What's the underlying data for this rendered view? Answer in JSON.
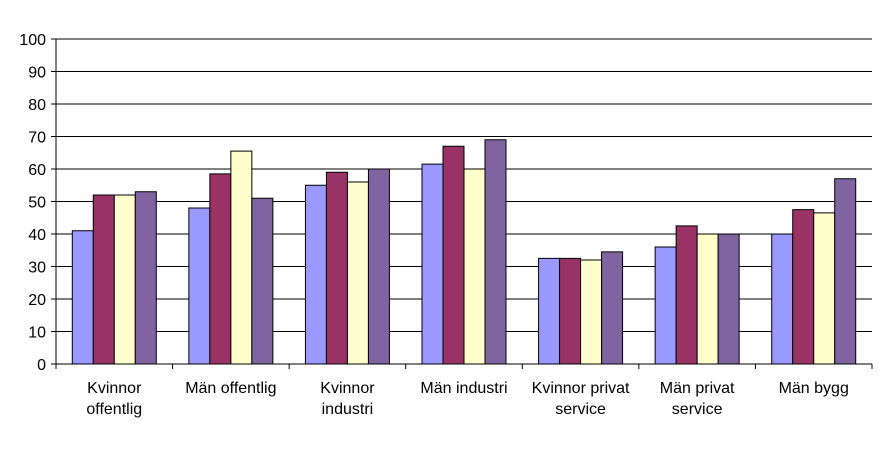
{
  "chart_data": {
    "type": "bar",
    "title": "",
    "xlabel": "",
    "ylabel": "",
    "ylim": [
      0,
      100
    ],
    "yticks": [
      0,
      10,
      20,
      30,
      40,
      50,
      60,
      70,
      80,
      90,
      100
    ],
    "grid": true,
    "legend": "none",
    "categories": [
      [
        "Kvinnor",
        "offentlig"
      ],
      [
        "Män offentlig"
      ],
      [
        "Kvinnor",
        "industri"
      ],
      [
        "Män industri"
      ],
      [
        "Kvinnor privat",
        "service"
      ],
      [
        "Män privat",
        "service"
      ],
      [
        "Män bygg"
      ]
    ],
    "series": [
      {
        "color": "#9999ff",
        "values": [
          41,
          48,
          55,
          61.5,
          32.5,
          36,
          40
        ]
      },
      {
        "color": "#993366",
        "values": [
          52,
          58.5,
          59,
          67,
          32.5,
          42.5,
          47.5
        ]
      },
      {
        "color": "#ffffcc",
        "values": [
          52,
          65.5,
          56,
          60,
          32,
          40,
          46.5
        ]
      },
      {
        "color": "#8064a2",
        "values": [
          53,
          51,
          60,
          69,
          34.5,
          40,
          57
        ]
      }
    ]
  }
}
